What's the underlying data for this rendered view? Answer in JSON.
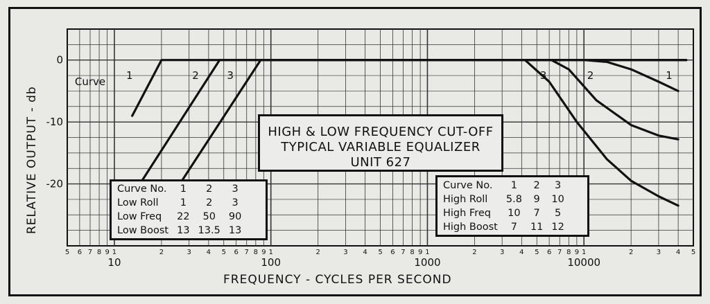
{
  "chart_data": {
    "type": "line",
    "title_lines": [
      "HIGH & LOW FREQUENCY CUT-OFF",
      "TYPICAL  VARIABLE EQUALIZER",
      "UNIT 627"
    ],
    "xlabel": "FREQUENCY - CYCLES PER SECOND",
    "ylabel": "RELATIVE  OUTPUT - db",
    "x_scale": "log",
    "xlim": [
      5,
      50000
    ],
    "ylim": [
      -30,
      5
    ],
    "y_ticks": [
      0,
      -10,
      -20
    ],
    "y_tick_labels": [
      "0",
      "-10",
      "-20"
    ],
    "x_major_ticks": [
      10,
      100,
      1000,
      10000
    ],
    "x_major_labels": [
      "10",
      "100",
      "1000",
      "10000"
    ],
    "x_minor_digits": [
      "2",
      "3",
      "4",
      "5",
      "6",
      "7",
      "8",
      "9",
      "1"
    ],
    "x_leading_digits": [
      "5",
      "6",
      "7",
      "8",
      "9",
      "1"
    ],
    "x_trailing_digits": [
      "2",
      "3",
      "4",
      "5"
    ],
    "curve_prefix": "Curve",
    "grid": true,
    "series": [
      {
        "name": "1",
        "group": "low",
        "x": [
          13,
          20,
          45000
        ],
        "y": [
          -9,
          0,
          0
        ]
      },
      {
        "name": "2",
        "group": "low",
        "x": [
          15,
          47,
          45000
        ],
        "y": [
          -19.5,
          0,
          0
        ]
      },
      {
        "name": "3",
        "group": "low",
        "x": [
          27,
          86,
          45000
        ],
        "y": [
          -19.5,
          0,
          0
        ]
      },
      {
        "name": "1",
        "group": "high",
        "x": [
          10000,
          14000,
          20000,
          30000,
          40000
        ],
        "y": [
          0,
          -0.3,
          -1.5,
          -3.5,
          -5
        ]
      },
      {
        "name": "2",
        "group": "high",
        "x": [
          6200,
          8000,
          12000,
          20000,
          30000,
          40000
        ],
        "y": [
          0,
          -1.5,
          -6.5,
          -10.5,
          -12.2,
          -12.8
        ]
      },
      {
        "name": "3",
        "group": "high",
        "x": [
          4200,
          6000,
          9000,
          14000,
          20000,
          30000,
          40000
        ],
        "y": [
          0,
          -3.5,
          -10,
          -16,
          -19.5,
          -22,
          -23.5
        ]
      }
    ],
    "curve_labels": [
      {
        "text": "Curve",
        "x": 7,
        "y": -3.5
      },
      {
        "text": "1",
        "x": 12.5,
        "y": -2.5
      },
      {
        "text": "2",
        "x": 33,
        "y": -2.5
      },
      {
        "text": "3",
        "x": 55,
        "y": -2.5
      },
      {
        "text": "3",
        "x": 5500,
        "y": -2.5
      },
      {
        "text": "2",
        "x": 11000,
        "y": -2.5
      },
      {
        "text": "1",
        "x": 35000,
        "y": -2.5
      }
    ]
  },
  "low_table": {
    "header": [
      "Curve No.",
      "1",
      "2",
      "3"
    ],
    "rows": [
      [
        "Low Roll",
        "1",
        "2",
        "3"
      ],
      [
        "Low Freq",
        "22",
        "50",
        "90"
      ],
      [
        "Low Boost",
        "13",
        "13.5",
        "13"
      ]
    ]
  },
  "high_table": {
    "header": [
      "Curve No.",
      "1",
      "2",
      "3"
    ],
    "rows": [
      [
        "High Roll",
        "5.8",
        "9",
        "10"
      ],
      [
        "High Freq",
        "10",
        "7",
        "5"
      ],
      [
        "High Boost",
        "7",
        "11",
        "12"
      ]
    ]
  }
}
